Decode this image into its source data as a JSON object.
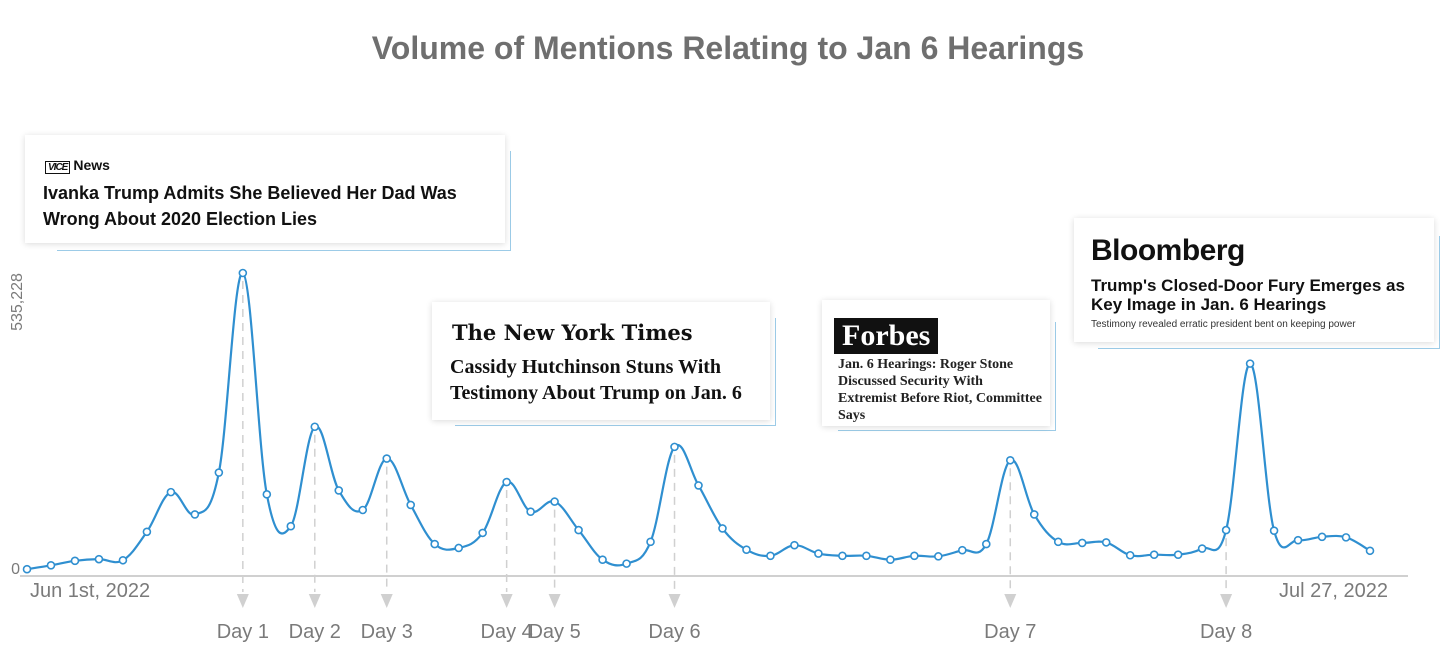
{
  "title": "Volume of Mentions Relating to Jan 6 Hearings",
  "colors": {
    "line": "#2f8fd0",
    "axis": "#d0d0d0",
    "label": "#7a7a7a",
    "marker": "#d0d0d0"
  },
  "chart_data": {
    "type": "line",
    "title": "Volume of Mentions Relating to Jan 6 Hearings",
    "xlabel": "",
    "ylabel": "",
    "x_range_labels": [
      "Jun 1st, 2022",
      "Jul 27, 2022"
    ],
    "y_ticks": [
      "0",
      "535,228"
    ],
    "ylim": [
      0,
      535228
    ],
    "grid": false,
    "x": [
      "2022-06-01",
      "2022-06-02",
      "2022-06-03",
      "2022-06-04",
      "2022-06-05",
      "2022-06-06",
      "2022-06-07",
      "2022-06-08",
      "2022-06-09",
      "2022-06-10",
      "2022-06-11",
      "2022-06-12",
      "2022-06-13",
      "2022-06-14",
      "2022-06-15",
      "2022-06-16",
      "2022-06-17",
      "2022-06-18",
      "2022-06-19",
      "2022-06-20",
      "2022-06-21",
      "2022-06-22",
      "2022-06-23",
      "2022-06-24",
      "2022-06-25",
      "2022-06-26",
      "2022-06-27",
      "2022-06-28",
      "2022-06-29",
      "2022-06-30",
      "2022-07-01",
      "2022-07-02",
      "2022-07-03",
      "2022-07-04",
      "2022-07-05",
      "2022-07-06",
      "2022-07-07",
      "2022-07-08",
      "2022-07-09",
      "2022-07-10",
      "2022-07-11",
      "2022-07-12",
      "2022-07-13",
      "2022-07-14",
      "2022-07-15",
      "2022-07-16",
      "2022-07-17",
      "2022-07-18",
      "2022-07-19",
      "2022-07-20",
      "2022-07-21",
      "2022-07-22",
      "2022-07-23",
      "2022-07-24",
      "2022-07-25",
      "2022-07-26",
      "2022-07-27"
    ],
    "values": [
      5000,
      12000,
      20000,
      23000,
      21000,
      72000,
      143000,
      103000,
      178000,
      535228,
      139000,
      82000,
      260000,
      146000,
      111000,
      203000,
      120000,
      50000,
      43000,
      70000,
      161000,
      108000,
      126000,
      75000,
      22000,
      15000,
      54000,
      224000,
      155000,
      78000,
      40000,
      29000,
      48000,
      33000,
      29000,
      29000,
      22000,
      29000,
      28000,
      39000,
      50000,
      200000,
      103000,
      54000,
      52000,
      53000,
      30000,
      31000,
      31000,
      42000,
      75000,
      373000,
      74000,
      57000,
      63000,
      62000,
      38000
    ],
    "markers": [
      {
        "label": "Day 1",
        "x": "2022-06-10"
      },
      {
        "label": "Day 2",
        "x": "2022-06-13"
      },
      {
        "label": "Day 3",
        "x": "2022-06-16"
      },
      {
        "label": "Day 4",
        "x": "2022-06-21"
      },
      {
        "label": "Day 5",
        "x": "2022-06-23"
      },
      {
        "label": "Day 6",
        "x": "2022-06-28"
      },
      {
        "label": "Day 7",
        "x": "2022-07-12"
      },
      {
        "label": "Day 8",
        "x": "2022-07-21"
      }
    ]
  },
  "annotations": {
    "vice": {
      "logo_mark": "VICE",
      "logo_text": "News",
      "headline": "Ivanka Trump Admits She Believed Her Dad Was Wrong About 2020 Election Lies"
    },
    "nyt": {
      "logo": "The New York Times",
      "headline": "Cassidy Hutchinson Stuns With Testimony About Trump on Jan. 6"
    },
    "forbes": {
      "logo": "Forbes",
      "headline": "Jan. 6 Hearings: Roger Stone Discussed Security With Extremist Before Riot, Committee Says"
    },
    "bloomberg": {
      "logo": "Bloomberg",
      "headline": "Trump's Closed-Door Fury Emerges as Key Image in Jan. 6 Hearings",
      "subhead": "Testimony revealed erratic president bent on keeping power"
    }
  }
}
